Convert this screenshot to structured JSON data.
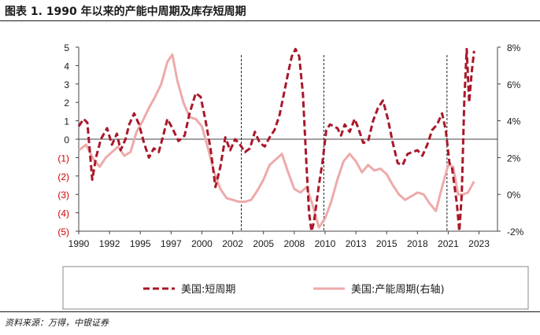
{
  "title": "图表 1. 1990 年以来的产能中周期及库存短周期",
  "source": "资料来源：万得，中银证券",
  "chart_data": {
    "type": "line",
    "title": "图表 1. 1990 年以来的产能中周期及库存短周期",
    "x_ticks": [
      "1990",
      "1992",
      "1995",
      "1997",
      "2000",
      "2002",
      "2005",
      "2008",
      "2010",
      "2013",
      "2015",
      "2018",
      "2021",
      "2023"
    ],
    "x_tick_years": [
      1990,
      1992.5,
      1995,
      1997.5,
      2000,
      2002.5,
      2005,
      2007.5,
      2010,
      2012.5,
      2015,
      2017.5,
      2020,
      2022.5
    ],
    "xlim": [
      1990,
      2024
    ],
    "y_left_ticks": [
      "5",
      "4",
      "3",
      "2",
      "1",
      "0",
      "(1)",
      "(2)",
      "(3)",
      "(4)",
      "(5)"
    ],
    "y_left_values": [
      5,
      4,
      3,
      2,
      1,
      0,
      -1,
      -2,
      -3,
      -4,
      -5
    ],
    "y_left_neg_color": "#cc0000",
    "ylim_left": [
      -5,
      5
    ],
    "y_right_ticks": [
      "8%",
      "6%",
      "4%",
      "2%",
      "0%",
      "-2%"
    ],
    "y_right_values": [
      8,
      6,
      4,
      2,
      0,
      -2
    ],
    "ylim_right": [
      -2,
      8
    ],
    "vlines": [
      2003.2,
      2009.9,
      2019.9
    ],
    "legend_position": "bottom",
    "series": [
      {
        "name": "美国:短周期",
        "axis": "left",
        "style": "dashed",
        "color": "#a8182a",
        "x": [
          1990,
          1990.4,
          1990.7,
          1991.1,
          1991.4,
          1991.8,
          1992.3,
          1992.7,
          1993.1,
          1993.4,
          1993.8,
          1994.1,
          1994.5,
          1994.9,
          1995.3,
          1995.7,
          1996.1,
          1996.5,
          1996.9,
          1997.2,
          1997.6,
          1998.1,
          1998.6,
          1999,
          1999.5,
          1999.9,
          2000.3,
          2000.7,
          2001.1,
          2001.5,
          2001.9,
          2002.3,
          2002.7,
          2003.1,
          2003.5,
          2003.9,
          2004.3,
          2004.7,
          2005.1,
          2005.5,
          2005.9,
          2006.3,
          2006.7,
          2007,
          2007.3,
          2007.6,
          2007.9,
          2008.2,
          2008.5,
          2008.7,
          2008.9,
          2009.1,
          2009.3,
          2009.5,
          2009.8,
          2010.1,
          2010.4,
          2010.7,
          2011,
          2011.3,
          2011.6,
          2012,
          2012.4,
          2012.7,
          2013.1,
          2013.5,
          2013.9,
          2014.3,
          2014.7,
          2015.1,
          2015.5,
          2015.9,
          2016.3,
          2016.7,
          2017.1,
          2017.5,
          2017.9,
          2018.3,
          2018.7,
          2019.1,
          2019.5,
          2019.8,
          2020.1,
          2020.3,
          2020.5,
          2020.7,
          2020.9,
          2021.1,
          2021.3,
          2021.5,
          2021.7,
          2021.9,
          2022.1
        ],
        "values": [
          0.7,
          1.1,
          0.9,
          -2.2,
          -1,
          0,
          0.6,
          -0.3,
          0.3,
          -0.6,
          0,
          0.8,
          1.4,
          0.8,
          -0.2,
          -1,
          -0.5,
          -0.7,
          0.3,
          1.1,
          0.6,
          -0.1,
          0.2,
          1.4,
          2.5,
          2.3,
          1,
          -0.5,
          -2.6,
          -1.5,
          0.1,
          -0.6,
          0,
          -0.3,
          -0.7,
          -0.5,
          0.4,
          -0.2,
          -0.4,
          0.1,
          0.5,
          1.3,
          2.6,
          3.6,
          4.5,
          4.9,
          4.5,
          2.5,
          -1.5,
          -4,
          -5,
          -4.5,
          -3.5,
          -2.5,
          -1.2,
          0.5,
          0.8,
          0.7,
          0.6,
          0.2,
          0.8,
          0.4,
          1.1,
          0.6,
          -0.2,
          -0.1,
          1,
          1.7,
          2.1,
          1.1,
          -0.2,
          -1.3,
          -1.4,
          -0.8,
          -0.7,
          -0.6,
          -0.9,
          -0.3,
          0.5,
          0.8,
          1.4,
          0.5,
          -1.3,
          -1.5,
          -2.5,
          -3.5,
          -5,
          -3,
          2,
          4.9,
          2,
          3.6,
          4.8
        ]
      },
      {
        "name": "美国:产能周期(右轴)",
        "axis": "right",
        "style": "solid",
        "color": "#eeaaaa",
        "x": [
          1990,
          1990.6,
          1991.2,
          1991.7,
          1992.2,
          1992.7,
          1993.2,
          1993.7,
          1994.2,
          1994.7,
          1995.2,
          1995.7,
          1996.2,
          1996.7,
          1997.2,
          1997.6,
          1998,
          1998.5,
          1999,
          1999.5,
          2000,
          2000.5,
          2001,
          2001.5,
          2002,
          2002.5,
          2003,
          2003.5,
          2004,
          2004.5,
          2005,
          2005.5,
          2006,
          2006.5,
          2007,
          2007.5,
          2008,
          2008.5,
          2009,
          2009.5,
          2010,
          2010.5,
          2011,
          2011.5,
          2012,
          2012.5,
          2013,
          2013.5,
          2014,
          2014.5,
          2015,
          2015.5,
          2016,
          2016.5,
          2017,
          2017.5,
          2018,
          2018.5,
          2019,
          2019.5,
          2020,
          2020.4,
          2020.8,
          2021.2,
          2021.6,
          2022.1
        ],
        "values": [
          2.4,
          2.7,
          1.9,
          1.5,
          2,
          2.3,
          2.6,
          2.1,
          2.3,
          3.4,
          4,
          4.7,
          5.3,
          6,
          7.2,
          7.6,
          6.2,
          5,
          4.2,
          4.1,
          3.7,
          2.5,
          1.2,
          0.3,
          -0.2,
          -0.3,
          -0.4,
          -0.4,
          -0.3,
          0.2,
          0.8,
          1.6,
          1.9,
          2.2,
          1.2,
          0.3,
          0.1,
          0.4,
          -0.6,
          -1.8,
          -1.3,
          -0.4,
          0.8,
          1.8,
          2.2,
          1.8,
          1.2,
          1.6,
          1.3,
          1.4,
          1.1,
          0.5,
          0,
          -0.3,
          -0.1,
          0.1,
          0,
          -0.5,
          -0.9,
          0.4,
          1.6,
          1.5,
          0,
          0,
          0.1,
          0.7
        ]
      }
    ]
  }
}
